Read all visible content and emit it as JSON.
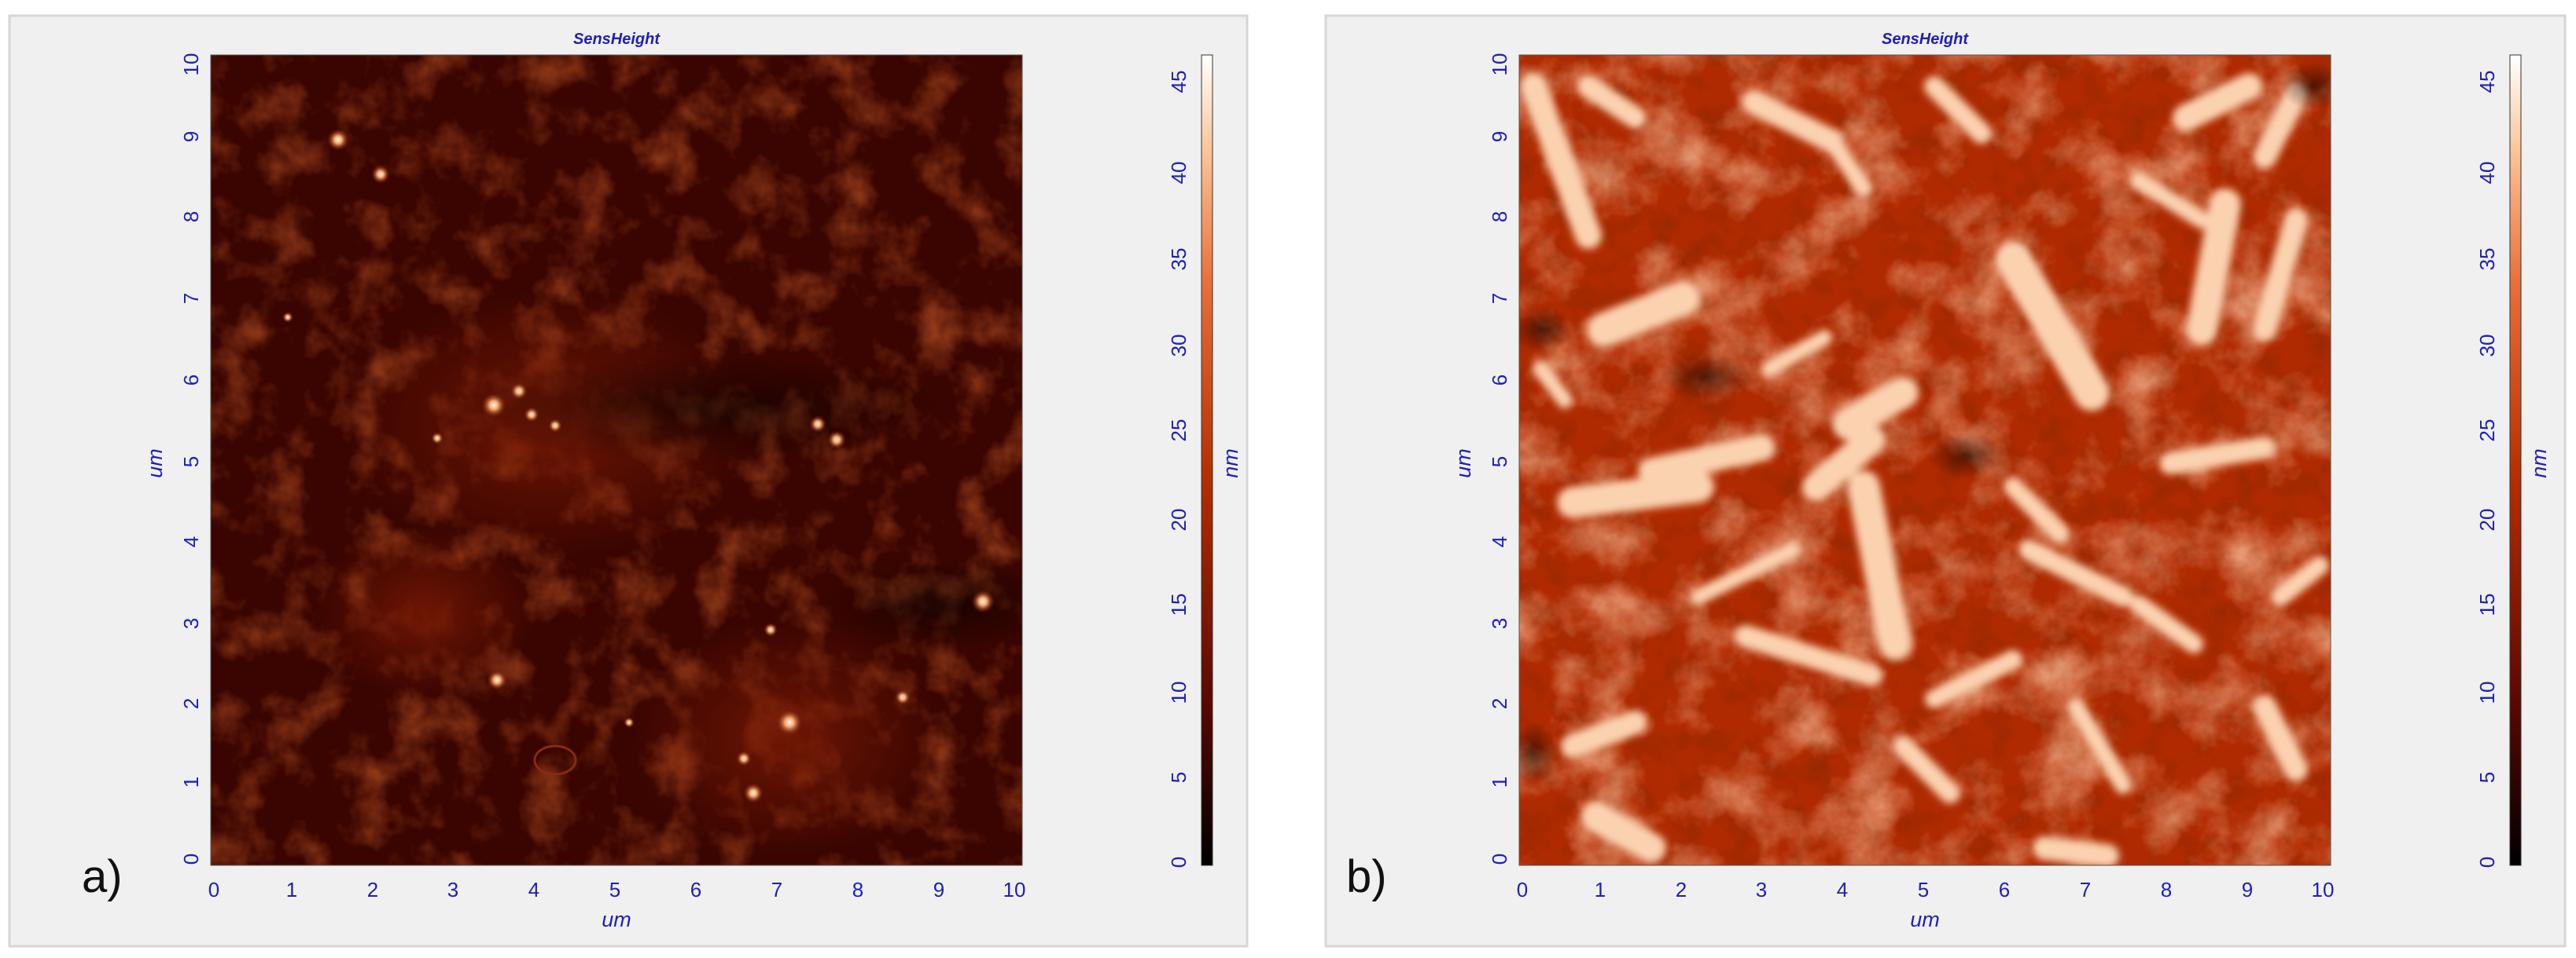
{
  "panels": [
    {
      "label": "a)",
      "title": "SensHeight",
      "x_axis_label": "um",
      "y_axis_label": "um",
      "x_ticks": [
        "0",
        "1",
        "2",
        "3",
        "4",
        "5",
        "6",
        "7",
        "8",
        "9",
        "10"
      ],
      "y_ticks": [
        "0",
        "1",
        "2",
        "3",
        "4",
        "5",
        "6",
        "7",
        "8",
        "9",
        "10"
      ],
      "colorbar": {
        "label": "nm",
        "ticks": [
          "0",
          "5",
          "10",
          "15",
          "20",
          "25",
          "30",
          "35",
          "40",
          "45"
        ],
        "range": [
          0,
          46
        ]
      },
      "image": "sparse dark surface with a few bright particles"
    },
    {
      "label": "b)",
      "title": "SensHeight",
      "x_axis_label": "um",
      "y_axis_label": "um",
      "x_ticks": [
        "0",
        "1",
        "2",
        "3",
        "4",
        "5",
        "6",
        "7",
        "8",
        "9",
        "10"
      ],
      "y_ticks": [
        "0",
        "1",
        "2",
        "3",
        "4",
        "5",
        "6",
        "7",
        "8",
        "9",
        "10"
      ],
      "colorbar": {
        "label": "nm",
        "ticks": [
          "0",
          "5",
          "10",
          "15",
          "20",
          "25",
          "30",
          "35",
          "40",
          "45"
        ],
        "range": [
          0,
          46
        ]
      },
      "image": "dense surface covered with elongated bright fibrils"
    }
  ],
  "colors": {
    "axis_text": "#1f1fb8",
    "panel_background": "#f0f0f0",
    "colormap": [
      "#000000",
      "#5a0800",
      "#b52f00",
      "#e8703a",
      "#fbc497",
      "#ffffff"
    ]
  }
}
